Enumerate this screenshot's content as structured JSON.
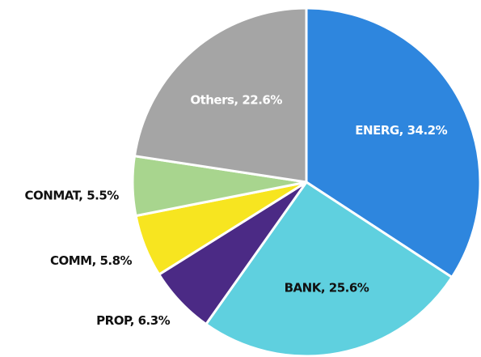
{
  "chart_data": {
    "type": "pie",
    "values": [
      34.2,
      25.6,
      6.3,
      5.8,
      5.5,
      22.6
    ],
    "value_labels": [
      "ENERG, 34.2%",
      "BANK, 25.6%",
      "PROP, 6.3%",
      "COMM, 5.8%",
      "CONMAT, 5.5%",
      "Others, 22.6%"
    ],
    "colors": [
      "#2e86de",
      "#5fd0df",
      "#4b2a85",
      "#f7e520",
      "#a8d58e",
      "#a5a5a5"
    ],
    "label_colors": [
      "#ffffff",
      "#111111",
      "#111111",
      "#111111",
      "#111111",
      "#ffffff"
    ]
  }
}
